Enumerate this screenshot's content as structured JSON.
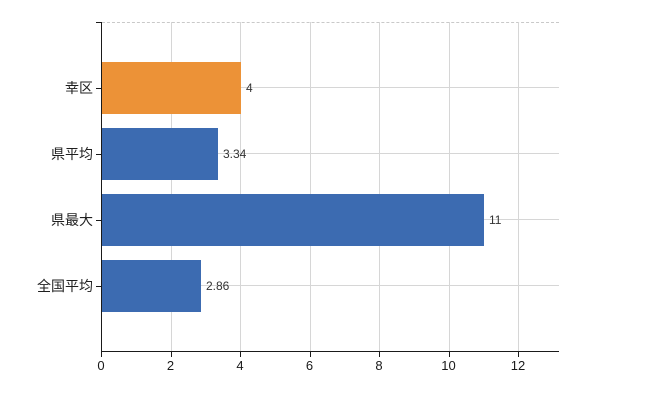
{
  "chart_data": {
    "type": "bar",
    "orientation": "horizontal",
    "title": "",
    "xlabel": "",
    "ylabel": "",
    "categories": [
      "幸区",
      "県平均",
      "県最大",
      "全国平均"
    ],
    "values": [
      4,
      3.34,
      11,
      2.86
    ],
    "value_labels": [
      "4",
      "3.34",
      "11",
      "2.86"
    ],
    "series": [
      {
        "name": "",
        "values": [
          4,
          3.34,
          11,
          2.86
        ]
      }
    ],
    "x_ticks": [
      0,
      2,
      4,
      6,
      8,
      10,
      12
    ],
    "x_tick_labels": [
      "0",
      "2",
      "4",
      "6",
      "8",
      "10",
      "12"
    ],
    "xlim": [
      0,
      13.2
    ],
    "grid": "both",
    "legend": "none",
    "colors": {
      "highlight_bar": "#EC9237",
      "default_bar": "#3C6BB1",
      "gridline": "#D6D6D6",
      "axis": "#1A1A1A",
      "value_label": "#333333",
      "background": "#FFFFFF"
    },
    "bar_colors": [
      "#EC9237",
      "#3C6BB1",
      "#3C6BB1",
      "#3C6BB1"
    ]
  }
}
